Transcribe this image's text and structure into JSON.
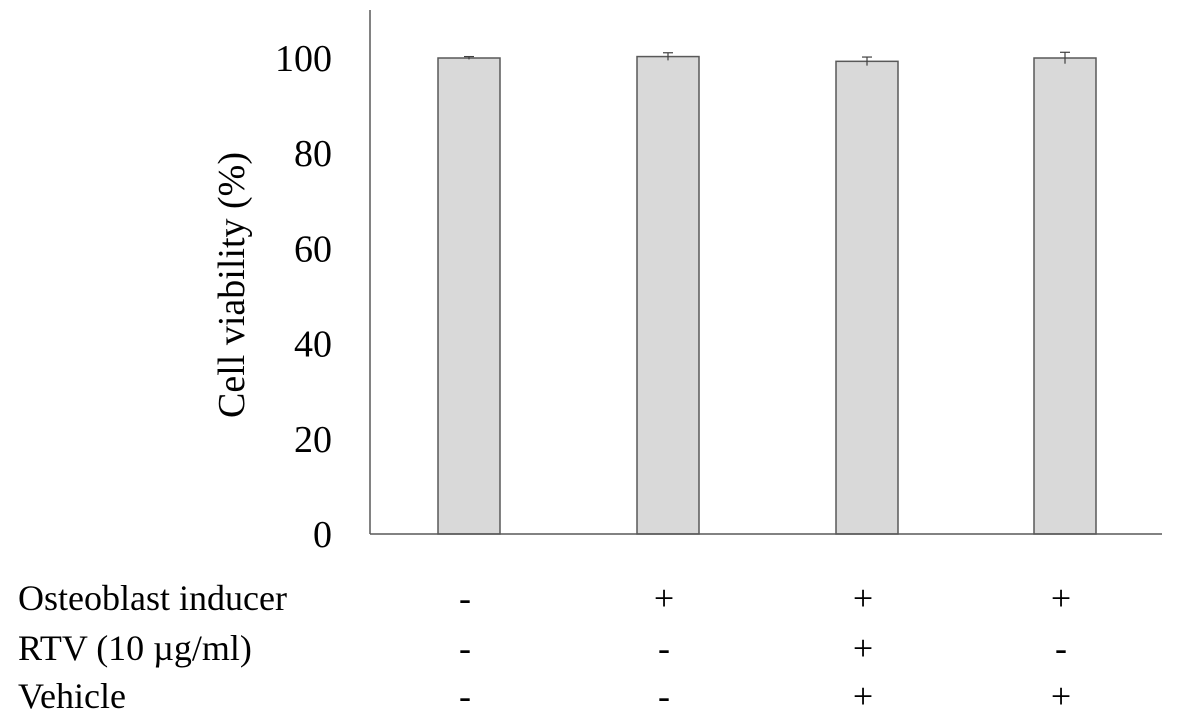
{
  "chart_data": {
    "type": "bar",
    "title": "",
    "xlabel": "",
    "ylabel": "Cell viability  (%)",
    "ylim": [
      0,
      110
    ],
    "yticks": [
      0,
      20,
      40,
      60,
      80,
      100
    ],
    "grid": false,
    "legend": "none",
    "bar_color": "#d9d9d9",
    "bar_edge_color": "#595959",
    "values": [
      100.0,
      100.3,
      99.3,
      100.0
    ],
    "errors": [
      0.3,
      0.8,
      0.9,
      1.2
    ],
    "conditions": [
      {
        "label": "Osteoblast  inducer",
        "signs": [
          "-",
          "+",
          "+",
          "+"
        ]
      },
      {
        "label": "RTV (10 µg/ml)",
        "signs": [
          "-",
          "-",
          "+",
          "-"
        ]
      },
      {
        "label": "Vehicle",
        "signs": [
          "-",
          "-",
          "+",
          "+"
        ]
      }
    ]
  }
}
